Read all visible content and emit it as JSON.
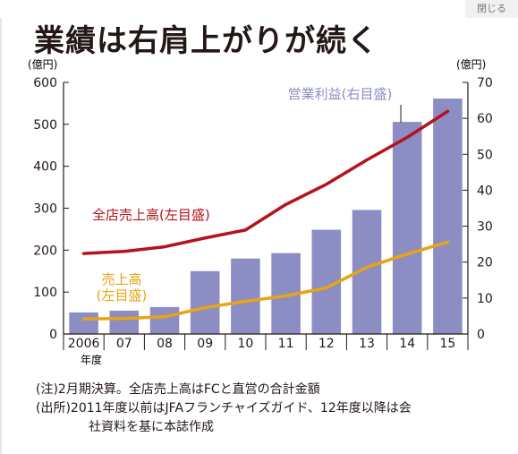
{
  "close_label": "閉じる",
  "title": "業績は右肩上がりが続く",
  "chart_data": {
    "type": "bar+line",
    "title": "業績は右肩上がりが続く",
    "left_axis": {
      "unit": "(億円)",
      "ticks": [
        "0",
        "100",
        "200",
        "300",
        "400",
        "500",
        "600"
      ],
      "range": [
        0,
        600
      ]
    },
    "right_axis": {
      "unit": "(億円)",
      "ticks": [
        "0",
        "10",
        "20",
        "30",
        "40",
        "50",
        "60",
        "70"
      ],
      "range": [
        0,
        70
      ]
    },
    "categories": [
      "2006",
      "07",
      "08",
      "09",
      "10",
      "11",
      "12",
      "13",
      "14",
      "15"
    ],
    "x_unit": "年度",
    "series": [
      {
        "name": "営業利益(右目盛)",
        "type": "bar",
        "axis": "right",
        "color": "#8b8dc3",
        "values": [
          6,
          6.5,
          7.5,
          17.5,
          21,
          22.5,
          29,
          34.5,
          59,
          65.5
        ]
      },
      {
        "name": "全店売上高(左目盛)",
        "type": "line",
        "axis": "left",
        "color": "#b5121b",
        "values": [
          192,
          197,
          208,
          229,
          248,
          309,
          357,
          415,
          469,
          531
        ]
      },
      {
        "name": "売上高",
        "name_line2": "(左目盛)",
        "type": "line",
        "axis": "left",
        "color": "#e8a317",
        "values": [
          36,
          37,
          41,
          63,
          78,
          91,
          110,
          159,
          191,
          219
        ]
      }
    ],
    "grid": false
  },
  "notes": {
    "line1": "(注)2月期決算。全店売上高はFCと直営の合計金額",
    "line2": "(出所)2011年度以前はJFAフランチャイズガイド、12年度以降は会",
    "line3": "社資料を基に本誌作成"
  }
}
